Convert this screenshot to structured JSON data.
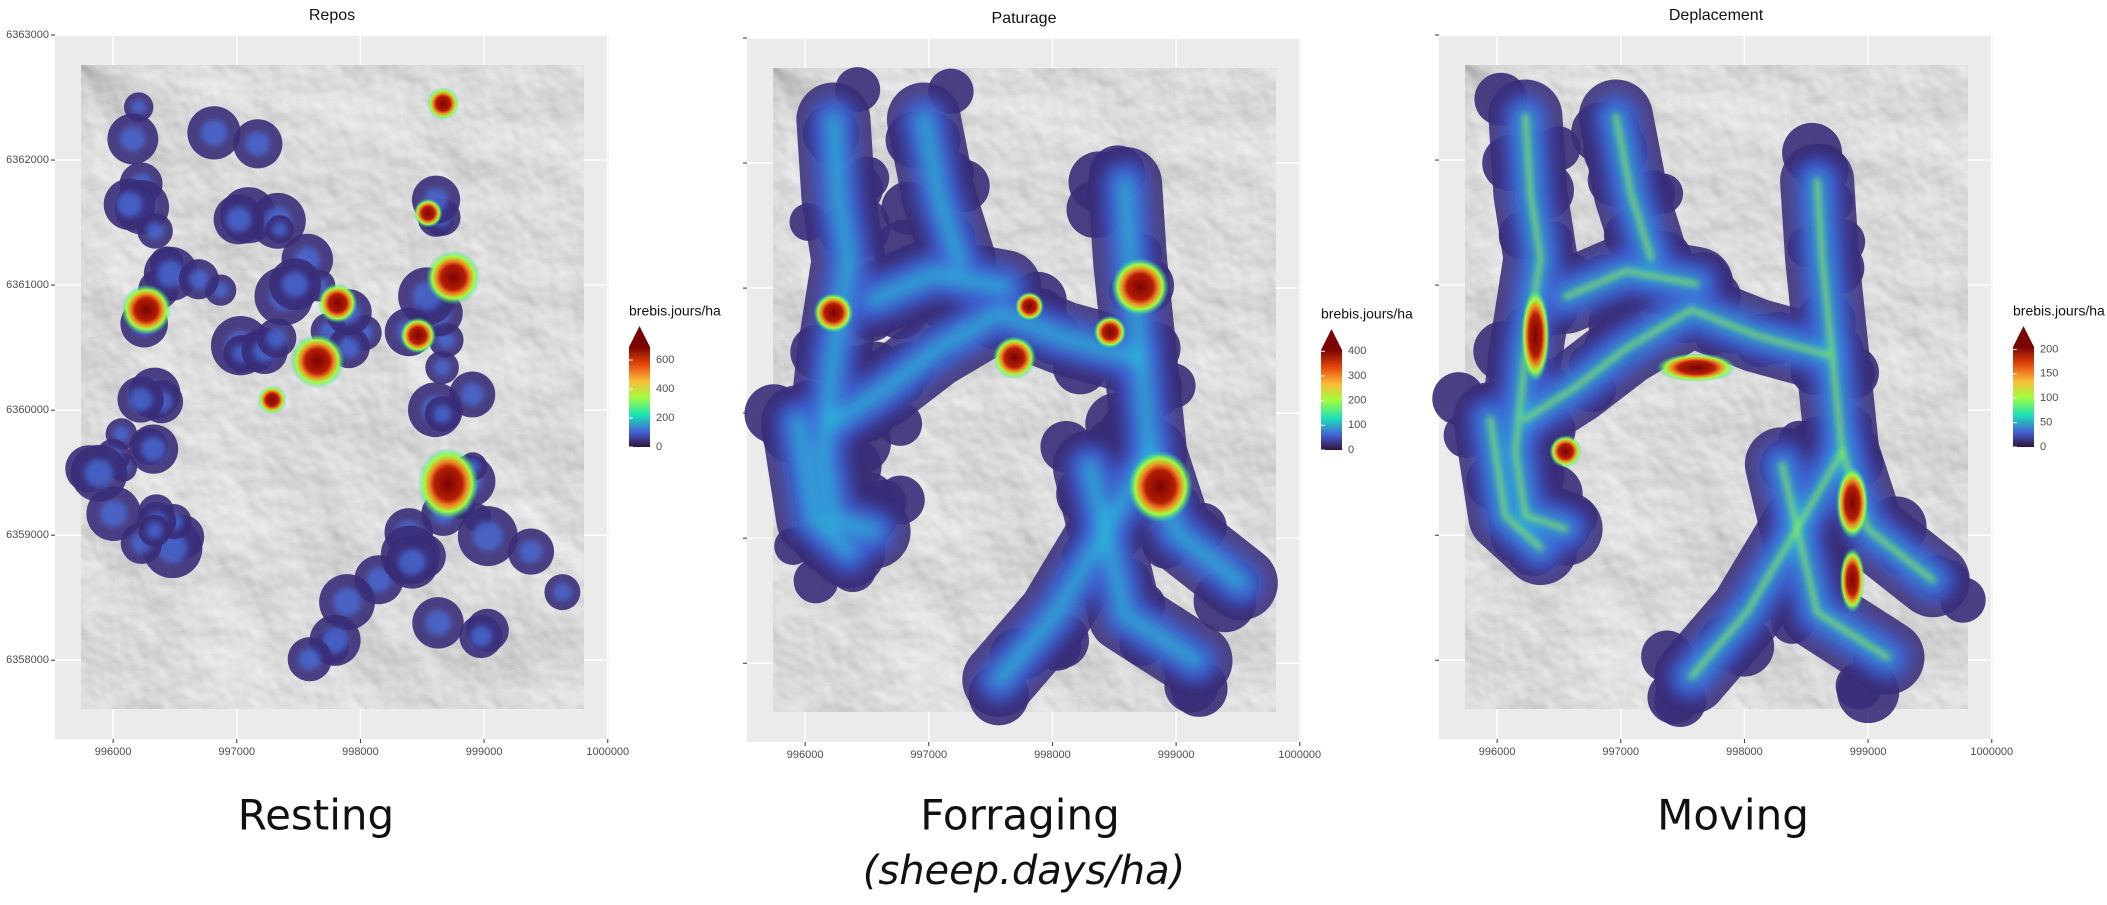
{
  "panels": [
    {
      "title": "Repos",
      "caption": "Resting",
      "style": "spots",
      "xlim": [
        995530,
        1000010
      ],
      "ylim": [
        6357370,
        6363000
      ],
      "xticks": [
        996000,
        997000,
        998000,
        999000,
        1000000
      ],
      "yticks": [
        6358000,
        6359000,
        6360000,
        6361000,
        6362000,
        6363000
      ],
      "ytick_labels": true,
      "legend": {
        "title": "brebis.jours/ha",
        "lim": [
          0,
          690
        ],
        "ticks": [
          0,
          200,
          400,
          600
        ]
      }
    },
    {
      "title": "Paturage",
      "caption": "Forraging",
      "style": "tracks",
      "xlim": [
        995530,
        1000010
      ],
      "ylim": [
        6357370,
        6363000
      ],
      "xticks": [
        996000,
        997000,
        998000,
        999000,
        1000000
      ],
      "yticks": [
        6358000,
        6359000,
        6360000,
        6361000,
        6362000,
        6363000
      ],
      "ytick_labels": false,
      "legend": {
        "title": "brebis.jours/ha",
        "lim": [
          0,
          405
        ],
        "ticks": [
          0,
          100,
          200,
          300,
          400
        ]
      }
    },
    {
      "title": "Deplacement",
      "caption": "Moving",
      "style": "tracks",
      "xlim": [
        995530,
        1000010
      ],
      "ylim": [
        6357370,
        6363000
      ],
      "xticks": [
        996000,
        997000,
        998000,
        999000,
        1000000
      ],
      "yticks": [
        6358000,
        6359000,
        6360000,
        6361000,
        6362000,
        6363000
      ],
      "ytick_labels": false,
      "legend": {
        "title": "brebis.jours/ha",
        "lim": [
          0,
          205
        ],
        "ticks": [
          0,
          50,
          100,
          150,
          200
        ]
      }
    }
  ],
  "units_note": "(sheep.days/ha)"
}
